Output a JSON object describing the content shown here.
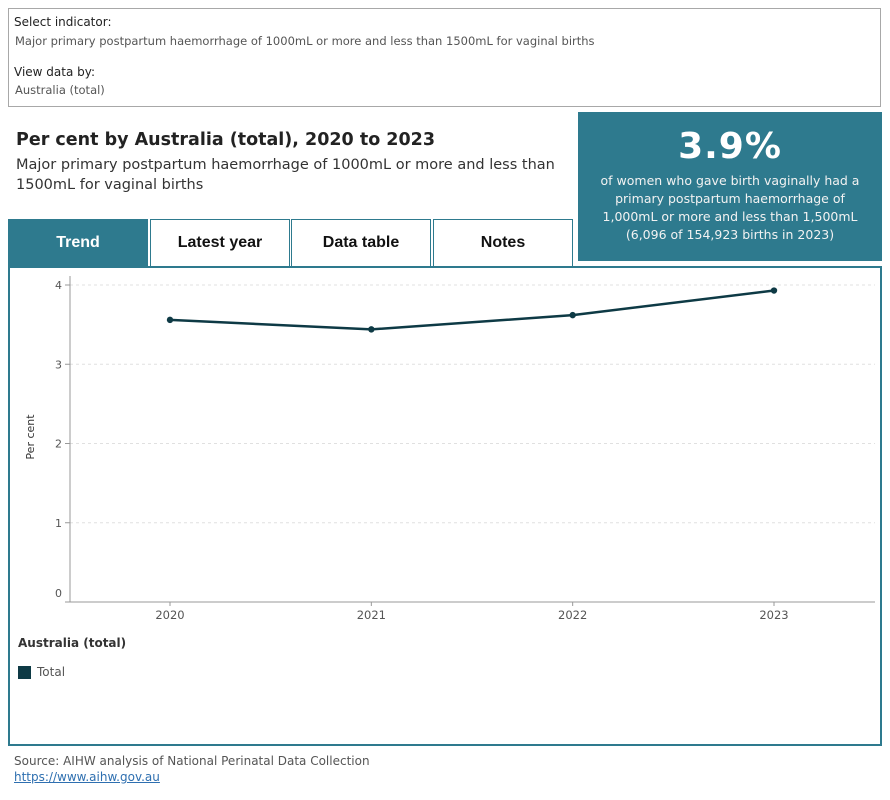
{
  "filters": {
    "indicator_label": "Select indicator:",
    "indicator_value": "Major primary postpartum haemorrhage of 1000mL or more and less than 1500mL for vaginal births",
    "view_label": "View data by:",
    "view_value": "Australia (total)"
  },
  "heading": "Per cent by Australia (total), 2020 to 2023",
  "subheading": "Major primary postpartum haemorrhage of 1000mL or more and less than 1500mL for vaginal births",
  "kpi": {
    "value": "3.9%",
    "text": "of women who gave birth vaginally had a primary postpartum haemorrhage of 1,000mL or more and less than 1,500mL (6,096 of 154,923 births in 2023)",
    "color": "#2e7a8e"
  },
  "tabs": [
    {
      "label": "Trend",
      "active": true
    },
    {
      "label": "Latest year",
      "active": false
    },
    {
      "label": "Data table",
      "active": false
    },
    {
      "label": "Notes",
      "active": false
    }
  ],
  "chart_data": {
    "type": "line",
    "categories": [
      "2020",
      "2021",
      "2022",
      "2023"
    ],
    "series": [
      {
        "name": "Total",
        "values": [
          3.56,
          3.44,
          3.62,
          3.93
        ],
        "color": "#0e3a45"
      }
    ],
    "xlabel": "",
    "ylabel": "Per cent",
    "ylim": [
      0,
      4
    ],
    "yticks": [
      "0",
      "1",
      "2",
      "3",
      "4"
    ],
    "grid": true,
    "legend_title": "Australia (total)",
    "legend": [
      "Total"
    ],
    "legend_position": "bottom-left"
  },
  "source": {
    "text": "Source: AIHW analysis of National Perinatal Data Collection",
    "link": "https://www.aihw.gov.au"
  }
}
